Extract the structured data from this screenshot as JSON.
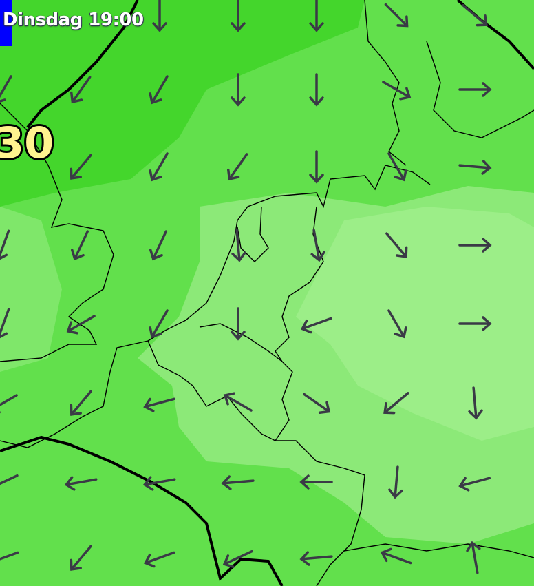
{
  "header": {
    "time_label": "Dinsdag 19:00"
  },
  "isobar": {
    "label": "30"
  },
  "colors": {
    "dark_green": "#44d62c",
    "mid_green": "#62e04c",
    "light_green": "#8ce978",
    "lightest_green": "#9cee88",
    "arrow": "#3a3a46",
    "time_tab": "#0000ff",
    "isobar_label": "#fff38f"
  },
  "wind_arrows": {
    "direction_convention": "degrees toward, 0 = north, clockwise",
    "rows": [
      [
        null,
        null,
        180,
        180,
        180,
        135,
        130
      ],
      [
        210,
        215,
        210,
        180,
        180,
        120,
        90
      ],
      [
        null,
        220,
        210,
        215,
        180,
        150,
        95
      ],
      [
        200,
        205,
        205,
        175,
        170,
        140,
        90
      ],
      [
        200,
        240,
        210,
        180,
        250,
        150,
        90
      ],
      [
        240,
        220,
        255,
        300,
        125,
        230,
        175
      ],
      [
        245,
        260,
        260,
        265,
        270,
        185,
        255
      ],
      [
        250,
        220,
        250,
        245,
        265,
        290,
        350
      ]
    ]
  }
}
